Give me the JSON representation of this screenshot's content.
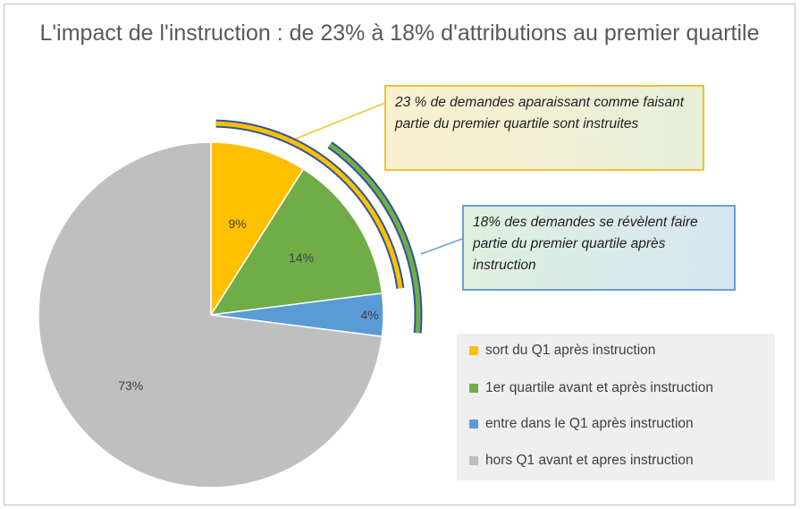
{
  "chart_data": {
    "type": "pie",
    "title": "L'impact de l'instruction : de 23% à 18% d'attributions au premier quartile",
    "categories": [
      "sort du Q1 après instruction",
      "1er quartile avant et après instruction",
      "entre dans le Q1 après instruction",
      "hors Q1 avant et apres instruction"
    ],
    "values": [
      9,
      14,
      4,
      73
    ],
    "labels": [
      "9%",
      "14%",
      "4%",
      "73%"
    ],
    "colors": [
      "#ffc000",
      "#70ad47",
      "#5b9bd5",
      "#bfbfbf"
    ],
    "legend_position": "right",
    "annotations": [
      "23 % de demandes aparaissant comme faisant partie du premier quartile sont instruites",
      "18% des demandes se révèlent faire partie du premier quartile après instruction"
    ]
  }
}
